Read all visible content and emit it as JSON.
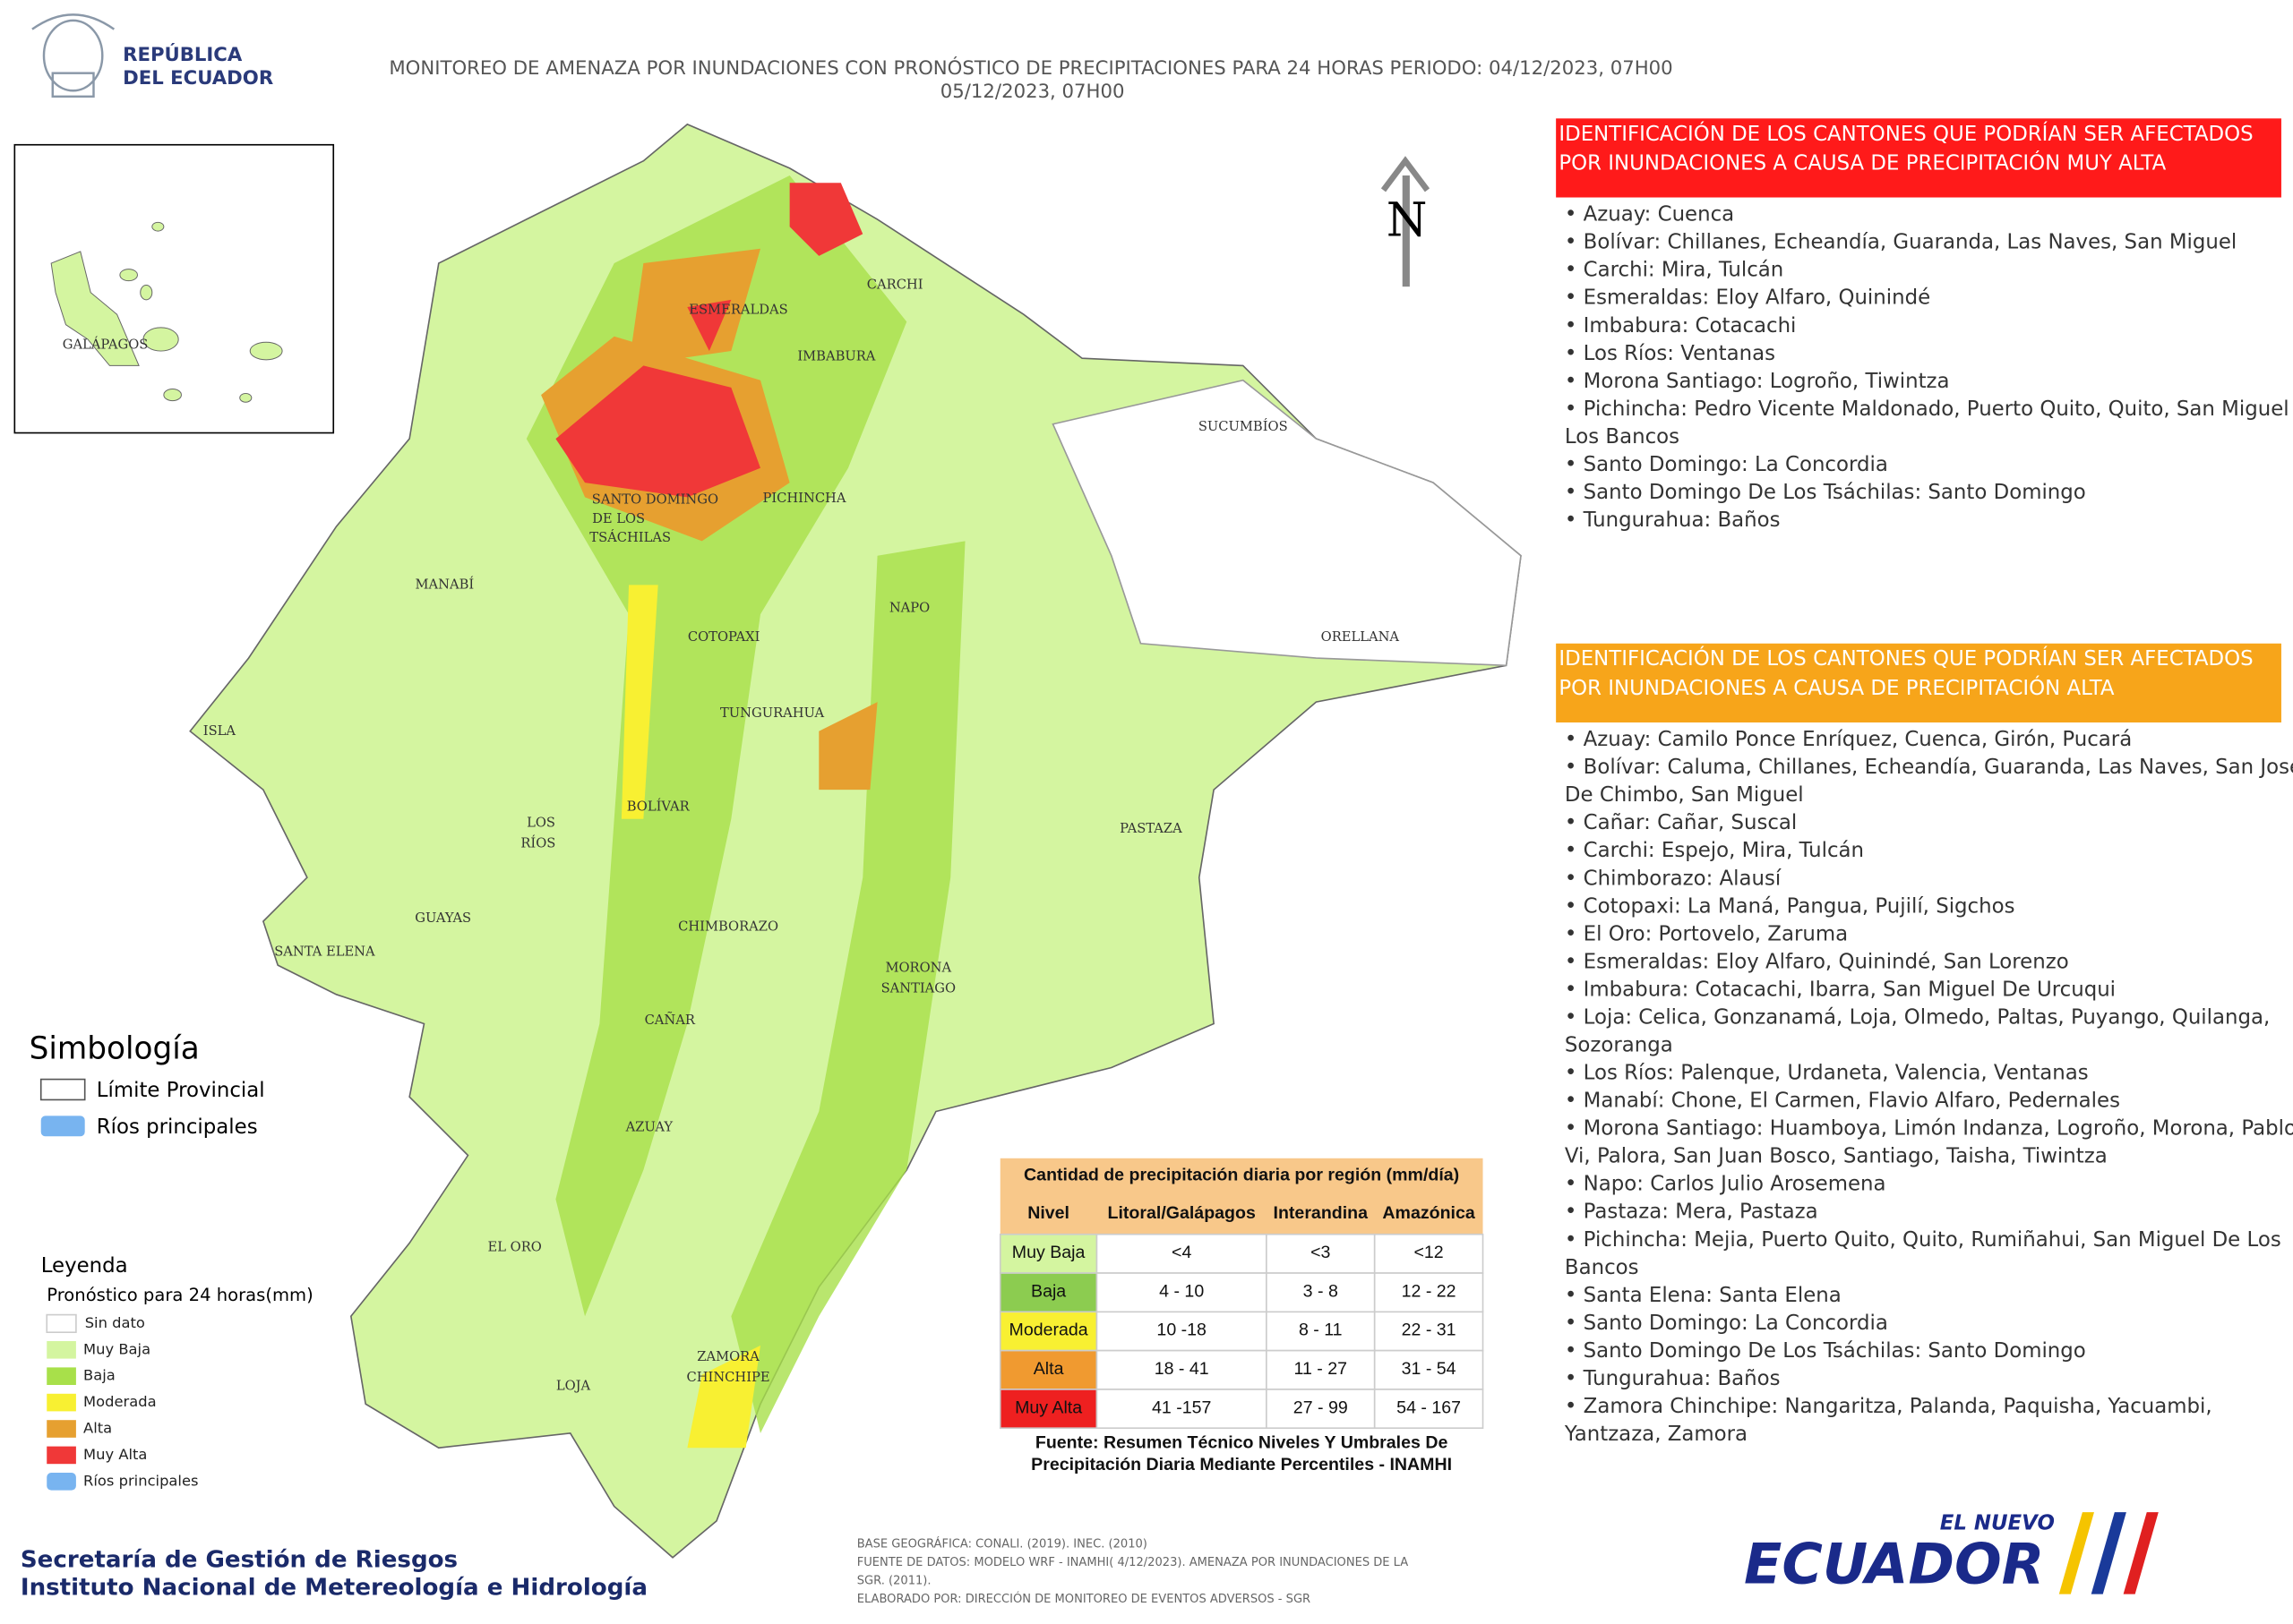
{
  "header": {
    "country": [
      "REPÚBLICA",
      "DEL ECUADOR"
    ],
    "title": [
      "MONITOREO DE AMENAZA POR INUNDACIONES  CON PRONÓSTICO DE  PRECIPITACIONES PARA 24 HORAS  PERIODO: 04/12/2023, 07H00",
      "05/12/2023, 07H00"
    ]
  },
  "very_high": {
    "title": [
      "IDENTIFICACIÓN DE LOS CANTONES QUE PODRÍAN SER AFECTADOS",
      "POR INUNDACIONES  A CAUSA DE PRECIPITACIÓN MUY ALTA"
    ],
    "items": [
      [
        "• Azuay: Cuenca"
      ],
      [
        "• Bolívar: Chillanes, Echeandía, Guaranda, Las Naves, San Miguel"
      ],
      [
        "• Carchi: Mira, Tulcán"
      ],
      [
        "• Esmeraldas: Eloy Alfaro, Quinindé"
      ],
      [
        "• Imbabura: Cotacachi"
      ],
      [
        "• Los Ríos: Ventanas"
      ],
      [
        "• Morona Santiago: Logroño, Tiwintza"
      ],
      [
        "• Pichincha: Pedro Vicente Maldonado, Puerto Quito, Quito, San Miguel De",
        "Los Bancos"
      ],
      [
        "• Santo Domingo: La Concordia"
      ],
      [
        "• Santo Domingo De Los Tsáchilas: Santo Domingo"
      ],
      [
        "• Tungurahua: Baños"
      ]
    ]
  },
  "high": {
    "title": [
      "IDENTIFICACIÓN DE LOS CANTONES QUE  PODRÍAN SER AFECTADOS",
      "POR INUNDACIONES  A CAUSA DE PRECIPITACIÓN  ALTA"
    ],
    "items": [
      [
        "• Azuay: Camilo Ponce Enríquez, Cuenca, Girón, Pucará"
      ],
      [
        "• Bolívar: Caluma, Chillanes, Echeandía, Guaranda, Las Naves, San José",
        "De Chimbo, San Miguel"
      ],
      [
        "• Cañar: Cañar, Suscal"
      ],
      [
        "• Carchi: Espejo, Mira, Tulcán"
      ],
      [
        "• Chimborazo: Alausí"
      ],
      [
        "• Cotopaxi: La Maná, Pangua, Pujilí, Sigchos"
      ],
      [
        "• El Oro: Portovelo, Zaruma"
      ],
      [
        "• Esmeraldas: Eloy Alfaro, Quinindé, San Lorenzo"
      ],
      [
        "• Imbabura: Cotacachi, Ibarra, San Miguel De Urcuqui"
      ],
      [
        "• Loja: Celica, Gonzanamá, Loja, Olmedo, Paltas, Puyango, Quilanga,",
        "Sozoranga"
      ],
      [
        "• Los Ríos: Palenque, Urdaneta, Valencia, Ventanas"
      ],
      [
        "• Manabí: Chone, El Carmen, Flavio Alfaro, Pedernales"
      ],
      [
        "• Morona Santiago: Huamboya, Limón Indanza, Logroño, Morona, Pablo",
        "Vi, Palora, San Juan Bosco, Santiago, Taisha, Tiwintza"
      ],
      [
        "• Napo: Carlos Julio Arosemena"
      ],
      [
        "• Pastaza: Mera, Pastaza"
      ],
      [
        "• Pichincha: Mejia, Puerto Quito, Quito, Rumiñahui, San Miguel De Los",
        "Bancos"
      ],
      [
        "• Santa Elena: Santa Elena"
      ],
      [
        "• Santo Domingo: La Concordia"
      ],
      [
        "• Santo Domingo De Los Tsáchilas: Santo Domingo"
      ],
      [
        "• Tungurahua: Baños"
      ],
      [
        "• Zamora Chinchipe: Nangaritza, Palanda, Paquisha, Yacuambi,",
        "Yantzaza, Zamora"
      ]
    ]
  },
  "provinces": [
    "ESMERALDAS",
    "CARCHI",
    "IMBABURA",
    "SUCUMBÍOS",
    "SANTO DOMINGO",
    "DE LOS",
    "TSÁCHILAS",
    "PICHINCHA",
    "MANABÍ",
    "NAPO",
    "ORELLANA",
    "COTOPAXI",
    "TUNGURAHUA",
    "ISLA",
    "BOLÍVAR",
    "LOS",
    "RÍOS",
    "PASTAZA",
    "GUAYAS",
    "CHIMBORAZO",
    "SANTA ELENA",
    "MORONA",
    "SANTIAGO",
    "CAÑAR",
    "AZUAY",
    "EL ORO",
    "LOJA",
    "ZAMORA",
    "CHINCHIPE",
    "GALÁPAGOS"
  ],
  "north": "N",
  "symbology": {
    "title": "Simbología",
    "items": [
      "Límite Provincial",
      "Ríos principales"
    ]
  },
  "legend": {
    "title": "Leyenda",
    "subtitle": "Pronóstico para 24 horas(mm)",
    "items": [
      {
        "label": "Sin dato",
        "color": "#ffffff"
      },
      {
        "label": "Muy Baja",
        "color": "#d4f5a0"
      },
      {
        "label": "Baja",
        "color": "#a8e04a"
      },
      {
        "label": "Moderada",
        "color": "#f8f032"
      },
      {
        "label": "Alta",
        "color": "#e6a030"
      },
      {
        "label": "Muy Alta",
        "color": "#f03838"
      },
      {
        "label": "Ríos principales",
        "color": "#78b4f0"
      }
    ]
  },
  "table": {
    "title": "Cantidad de precipitación diaria por región (mm/día)",
    "header": [
      "Nivel",
      "Litoral/Galápagos",
      "Interandina",
      "Amazónica"
    ],
    "rows": [
      {
        "cells": [
          "Muy Baja",
          "<4",
          "<3",
          "<12"
        ],
        "color": "#d4f5a0"
      },
      {
        "cells": [
          "Baja",
          "4 - 10",
          "3 - 8",
          "12 - 22"
        ],
        "color": "#8ccc50"
      },
      {
        "cells": [
          "Moderada",
          "10 -18",
          "8 - 11",
          "22 - 31"
        ],
        "color": "#f8f032"
      },
      {
        "cells": [
          "Alta",
          "18 - 41",
          "11 - 27",
          "31 - 54"
        ],
        "color": "#f09a30"
      },
      {
        "cells": [
          "Muy Alta",
          "41 -157",
          "27 - 99",
          "54 - 167"
        ],
        "color": "#ee2020"
      }
    ],
    "source": [
      "Fuente: Resumen Técnico Niveles Y Umbrales De",
      "Precipitación Diaria Mediante Percentiles - INAMHI"
    ]
  },
  "institutions": [
    "Secretaría de Gestión de Riesgos",
    "Instituto Nacional de Metereología e Hidrología"
  ],
  "credits": [
    "BASE GEOGRÁFICA: CONALI. (2019). INEC. (2010)",
    "FUENTE DE DATOS: MODELO WRF - INAMHI( 4/12/2023).  AMENAZA POR INUNDACIONES DE LA",
    "SGR. (2011).",
    "ELABORADO POR: DIRECCIÓN DE MONITOREO DE EVENTOS ADVERSOS - SGR"
  ],
  "logo": [
    "EL NUEVO",
    "ECUADOR"
  ]
}
